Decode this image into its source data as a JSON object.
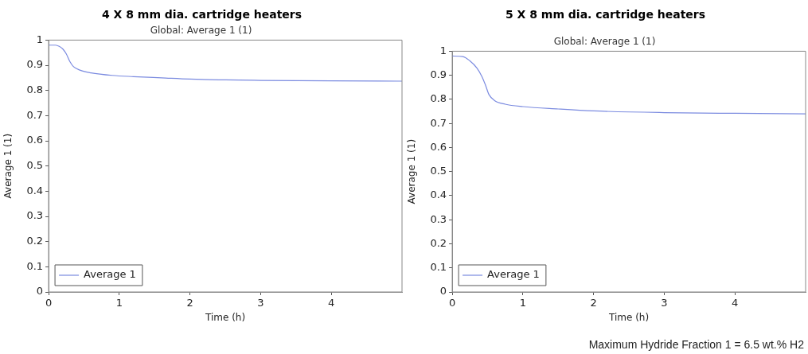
{
  "chart_data": [
    {
      "type": "line",
      "title": "4  X 8 mm dia. cartridge heaters",
      "subtitle": "Global: Average 1 (1)",
      "xlabel": "Time (h)",
      "ylabel": "Average 1 (1)",
      "xlim": [
        0,
        5
      ],
      "xticks": [
        0,
        1,
        2,
        3,
        4
      ],
      "ylim": [
        0,
        1
      ],
      "yticks": [
        0,
        0.1,
        0.2,
        0.3,
        0.4,
        0.5,
        0.6,
        0.7,
        0.8,
        0.9,
        1
      ],
      "grid": false,
      "legend": "bottom left",
      "marker": "none",
      "line_style": "solid",
      "series": [
        {
          "name": "Average 1",
          "color": "#7b8be0",
          "x": [
            0,
            0.1,
            0.15,
            0.2,
            0.25,
            0.3,
            0.35,
            0.45,
            0.6,
            0.9,
            1.2,
            1.6,
            2,
            2.5,
            3,
            4,
            5
          ],
          "values": [
            0.98,
            0.98,
            0.975,
            0.965,
            0.945,
            0.915,
            0.895,
            0.88,
            0.87,
            0.86,
            0.855,
            0.85,
            0.845,
            0.842,
            0.84,
            0.838,
            0.837
          ]
        }
      ]
    },
    {
      "type": "line",
      "title": "5  X 8 mm dia. cartridge heaters",
      "subtitle": "Global: Average 1 (1)",
      "xlabel": "Time (h)",
      "ylabel": "Average 1 (1)",
      "xlim": [
        0,
        5
      ],
      "xticks": [
        0,
        1,
        2,
        3,
        4
      ],
      "ylim": [
        0,
        1
      ],
      "yticks": [
        0,
        0.1,
        0.2,
        0.3,
        0.4,
        0.5,
        0.6,
        0.7,
        0.8,
        0.9,
        1
      ],
      "grid": false,
      "legend": "bottom left",
      "marker": "none",
      "line_style": "solid",
      "annotations": [
        "Maximum Hydride Fraction 1 = 6.5 wt.% H2"
      ],
      "series": [
        {
          "name": "Average 1",
          "color": "#7b8be0",
          "x": [
            0,
            0.15,
            0.25,
            0.35,
            0.42,
            0.47,
            0.52,
            0.6,
            0.75,
            1,
            1.5,
            2,
            3,
            4,
            5
          ],
          "values": [
            0.98,
            0.978,
            0.96,
            0.93,
            0.895,
            0.86,
            0.82,
            0.795,
            0.78,
            0.77,
            0.76,
            0.752,
            0.745,
            0.742,
            0.74
          ]
        }
      ]
    }
  ]
}
